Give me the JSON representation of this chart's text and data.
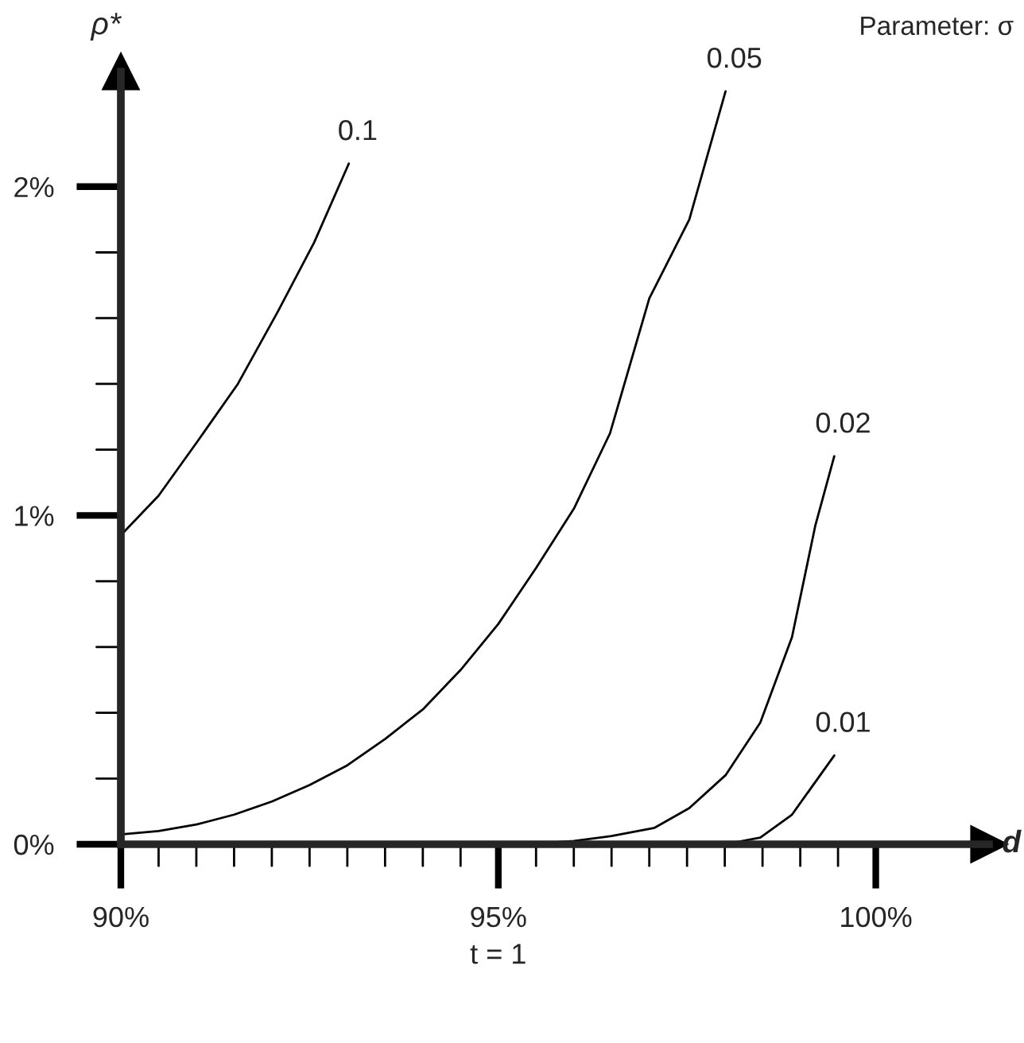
{
  "chart_data": {
    "type": "line",
    "xlabel": "d",
    "ylabel": "ρ*",
    "annotations": [
      "t = 1",
      "Parameter: σ"
    ],
    "series": [
      {
        "name": "0.1",
        "color": "#000000",
        "x": [
          90,
          90.5,
          91.03,
          91.55,
          92.08,
          92.56,
          93.02
        ],
        "values": [
          0.94,
          1.06,
          1.23,
          1.4,
          1.62,
          1.83,
          2.07
        ]
      },
      {
        "name": "0.05",
        "color": "#000000",
        "x": [
          90,
          90.5,
          91,
          91.5,
          92,
          92.5,
          93,
          93.5,
          94,
          94.5,
          95,
          95.5,
          96,
          96.48,
          97,
          97.53,
          98.01
        ],
        "values": [
          0.03,
          0.04,
          0.06,
          0.09,
          0.13,
          0.18,
          0.24,
          0.32,
          0.41,
          0.53,
          0.67,
          0.84,
          1.02,
          1.25,
          1.66,
          1.9,
          2.29
        ]
      },
      {
        "name": "0.02",
        "color": "#000000",
        "x": [
          95.2,
          95.5,
          96,
          96.5,
          97.07,
          97.53,
          98.01,
          98.47,
          98.89,
          99.2,
          99.45
        ],
        "values": [
          0,
          0.002,
          0.01,
          0.025,
          0.05,
          0.11,
          0.21,
          0.37,
          0.63,
          0.97,
          1.18
        ]
      },
      {
        "name": "0.01",
        "color": "#000000",
        "x": [
          98,
          98.47,
          98.89,
          99.45
        ],
        "values": [
          0,
          0.02,
          0.09,
          0.27
        ]
      }
    ],
    "xlim": [
      90,
      101.5
    ],
    "ylim": [
      0,
      2.35
    ],
    "xticks": [
      {
        "value": 90,
        "label": "90%"
      },
      {
        "value": 90.5,
        "label": null
      },
      {
        "value": 91,
        "label": null
      },
      {
        "value": 91.5,
        "label": null
      },
      {
        "value": 92,
        "label": null
      },
      {
        "value": 92.5,
        "label": null
      },
      {
        "value": 93,
        "label": null
      },
      {
        "value": 93.5,
        "label": null
      },
      {
        "value": 94,
        "label": null
      },
      {
        "value": 94.5,
        "label": null
      },
      {
        "value": 95,
        "label": "95%"
      },
      {
        "value": 95.5,
        "label": null
      },
      {
        "value": 96,
        "label": null
      },
      {
        "value": 96.5,
        "label": null
      },
      {
        "value": 97,
        "label": null
      },
      {
        "value": 97.5,
        "label": null
      },
      {
        "value": 98,
        "label": null
      },
      {
        "value": 98.5,
        "label": null
      },
      {
        "value": 99,
        "label": null
      },
      {
        "value": 99.5,
        "label": null
      },
      {
        "value": 100,
        "label": "100%"
      }
    ],
    "yticks": [
      {
        "value": 0,
        "label": "0%"
      },
      {
        "value": 0.2,
        "label": null
      },
      {
        "value": 0.4,
        "label": null
      },
      {
        "value": 0.6,
        "label": null
      },
      {
        "value": 0.8,
        "label": null
      },
      {
        "value": 1,
        "label": "1%"
      },
      {
        "value": 1.2,
        "label": null
      },
      {
        "value": 1.4,
        "label": null
      },
      {
        "value": 1.6,
        "label": null
      },
      {
        "value": 1.8,
        "label": null
      },
      {
        "value": 2,
        "label": "2%"
      }
    ],
    "grid": false,
    "legend": false,
    "marker": "none",
    "line_style": "solid"
  }
}
